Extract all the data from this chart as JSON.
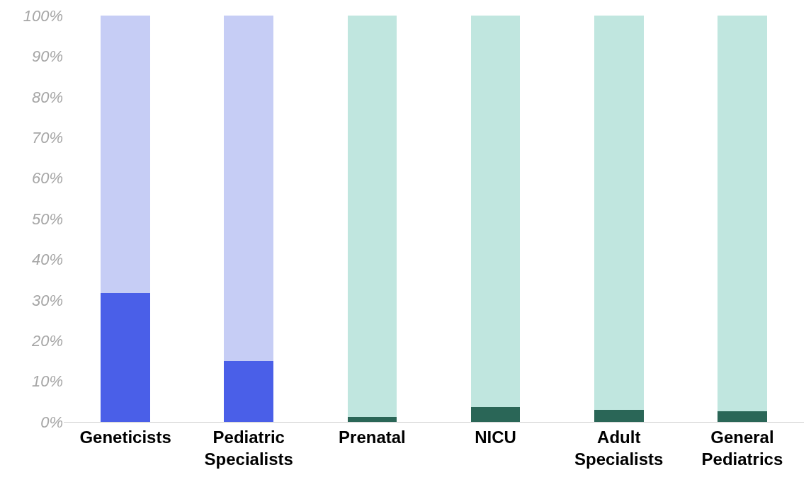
{
  "chart_data": {
    "type": "bar",
    "stacked": true,
    "categories": [
      "Geneticists",
      "Pediatric Specialists",
      "Prenatal",
      "NICU",
      "Adult Specialists",
      "General Pediatrics"
    ],
    "series": [
      {
        "colors": [
          "#4a5fe8",
          "#4a5fe8",
          "#2a6657",
          "#2a6657",
          "#2a6657",
          "#2a6657"
        ],
        "values": [
          31.7,
          15.0,
          1.2,
          3.6,
          2.9,
          2.6
        ]
      },
      {
        "colors": [
          "#c6cdf5",
          "#c6cdf5",
          "#c0e6df",
          "#c0e6df",
          "#c0e6df",
          "#c0e6df"
        ],
        "values": [
          68.3,
          85.0,
          98.8,
          96.4,
          97.1,
          97.4
        ]
      }
    ],
    "ylim": [
      0,
      100
    ],
    "yticks": [
      {
        "value": 0,
        "label": "0%"
      },
      {
        "value": 10,
        "label": "10%"
      },
      {
        "value": 20,
        "label": "20%"
      },
      {
        "value": 30,
        "label": "30%"
      },
      {
        "value": 40,
        "label": "40%"
      },
      {
        "value": 50,
        "label": "50%"
      },
      {
        "value": 60,
        "label": "60%"
      },
      {
        "value": 70,
        "label": "70%"
      },
      {
        "value": 80,
        "label": "80%"
      },
      {
        "value": 90,
        "label": "90%"
      },
      {
        "value": 100,
        "label": "100%"
      }
    ],
    "tick_labels": true
  }
}
